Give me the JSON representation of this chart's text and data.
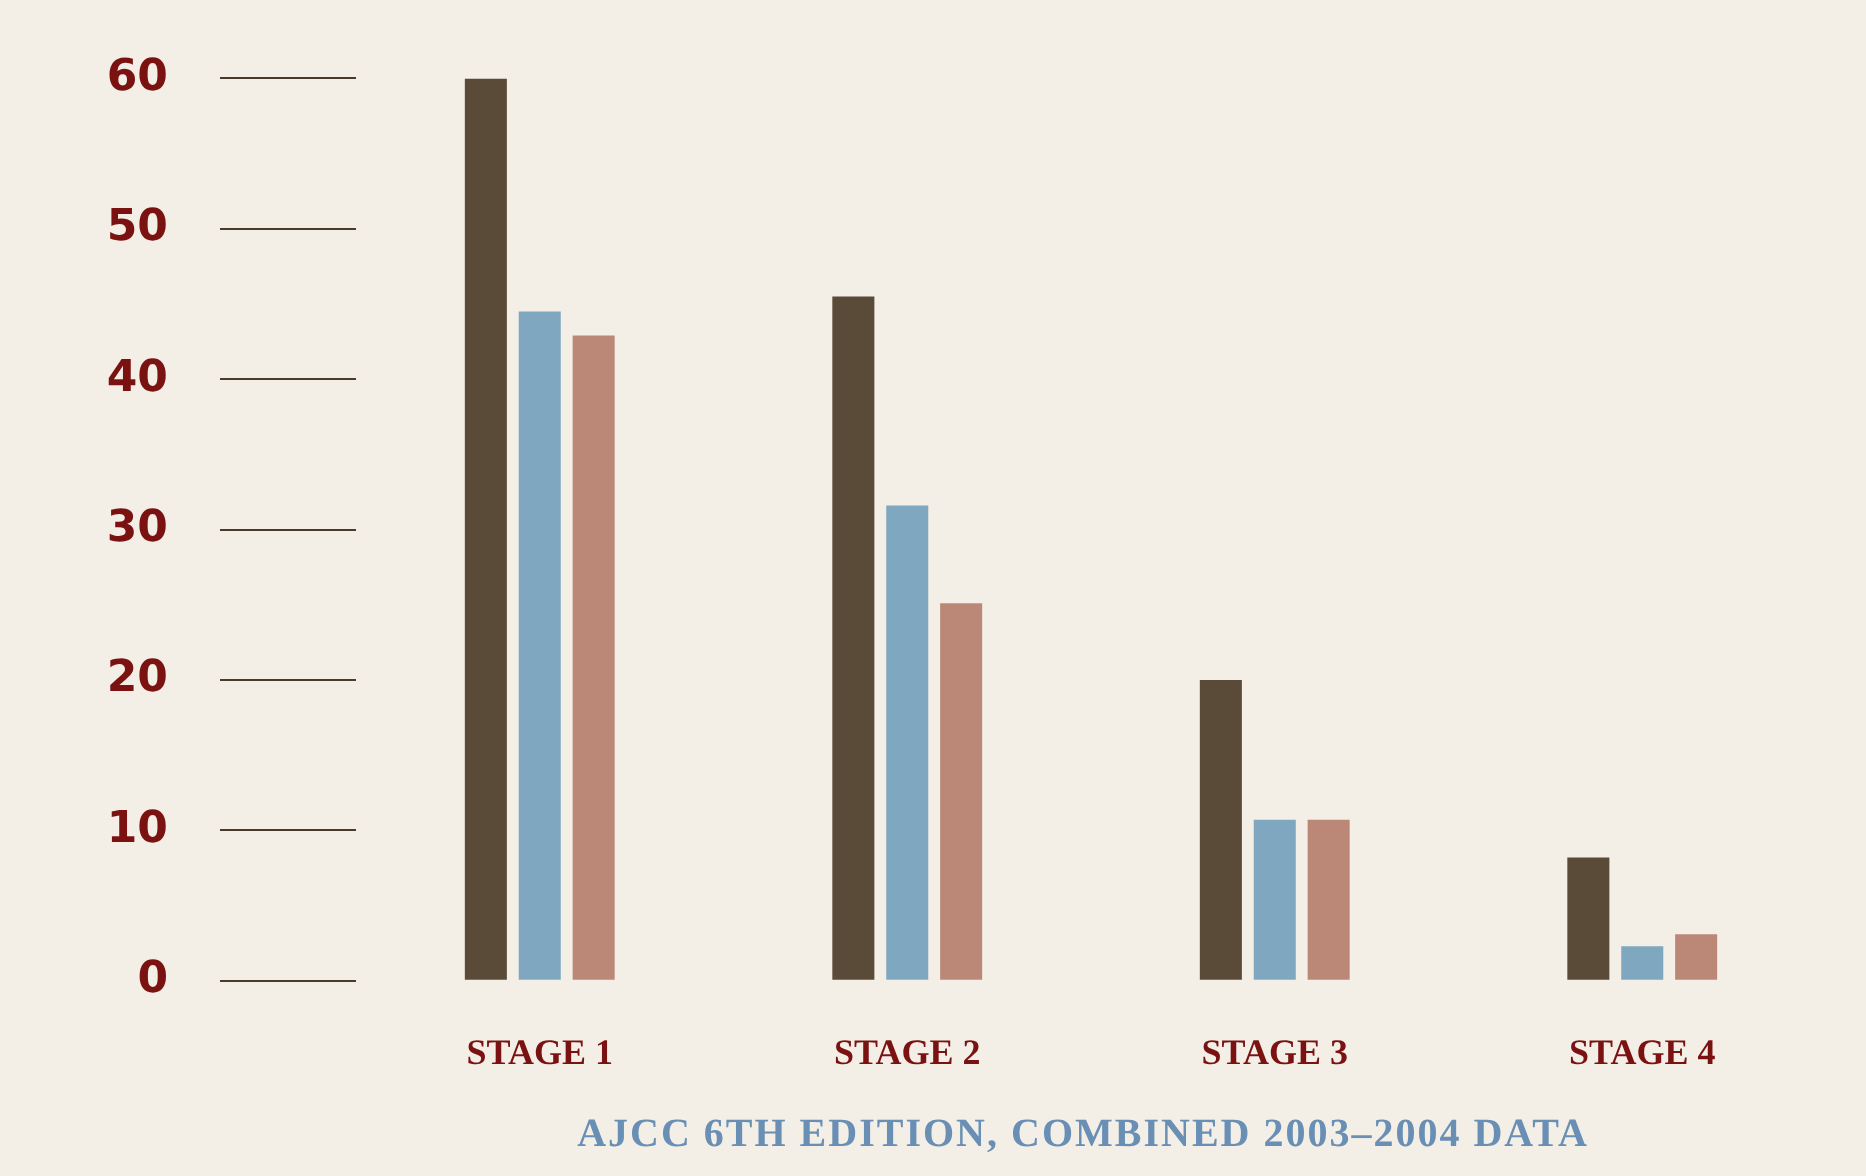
{
  "chart_data": {
    "type": "bar",
    "categories": [
      "STAGE 1",
      "STAGE 2",
      "STAGE 3",
      "STAGE 4"
    ],
    "series": [
      {
        "color": "#5a4a38",
        "values": [
          60,
          45.5,
          20,
          8.2
        ]
      },
      {
        "color": "#7fa8c0",
        "values": [
          44.5,
          31.6,
          10.7,
          2.3
        ]
      },
      {
        "color": "#bb8878",
        "values": [
          42.9,
          25.1,
          10.7,
          3.1
        ]
      }
    ],
    "ylim": [
      0,
      60
    ],
    "yticks": [
      0,
      10,
      20,
      30,
      40,
      50,
      60
    ],
    "legend": false,
    "annotations": [
      "AJCC 6TH EDITION, COMBINED 2003–2004 DATA"
    ]
  }
}
